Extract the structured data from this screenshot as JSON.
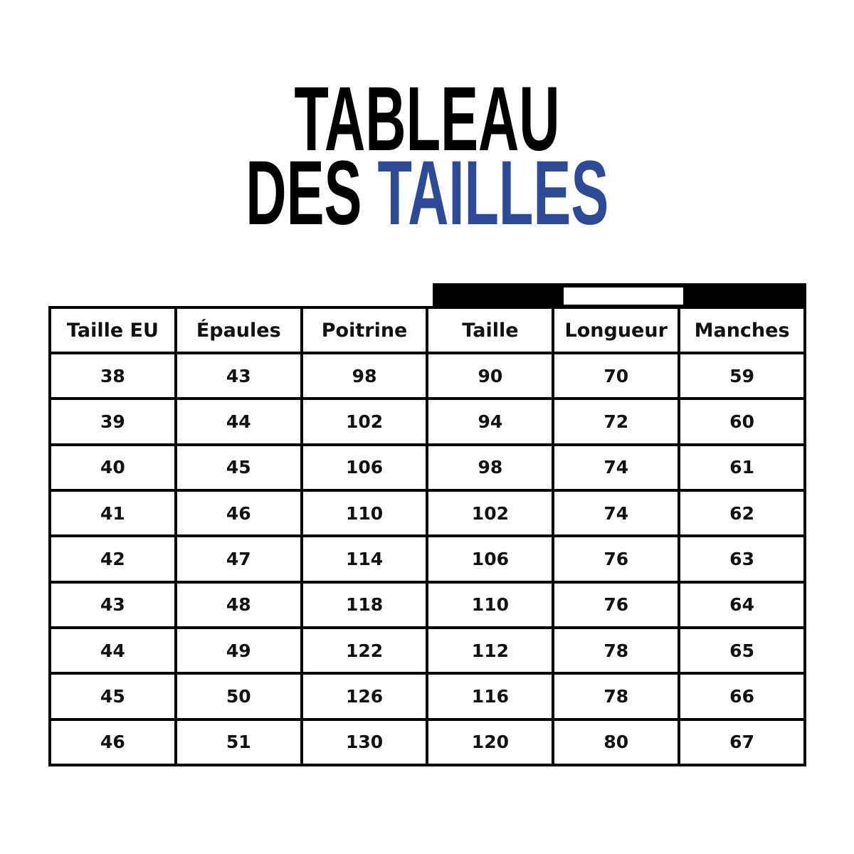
{
  "title": {
    "line1": "TABLEAU",
    "line2_black": "DES",
    "line2_blue": "TAILLES",
    "accent_color": "#2d4a94"
  },
  "table": {
    "headers": [
      "Taille EU",
      "Épaules",
      "Poitrine",
      "Taille",
      "Longueur",
      "Manches"
    ],
    "rows": [
      [
        "38",
        "43",
        "98",
        "90",
        "70",
        "59"
      ],
      [
        "39",
        "44",
        "102",
        "94",
        "72",
        "60"
      ],
      [
        "40",
        "45",
        "106",
        "98",
        "74",
        "61"
      ],
      [
        "41",
        "46",
        "110",
        "102",
        "74",
        "62"
      ],
      [
        "42",
        "47",
        "114",
        "106",
        "76",
        "63"
      ],
      [
        "43",
        "48",
        "118",
        "110",
        "76",
        "64"
      ],
      [
        "44",
        "49",
        "122",
        "112",
        "78",
        "65"
      ],
      [
        "45",
        "50",
        "126",
        "116",
        "78",
        "66"
      ],
      [
        "46",
        "51",
        "130",
        "120",
        "80",
        "67"
      ]
    ]
  }
}
